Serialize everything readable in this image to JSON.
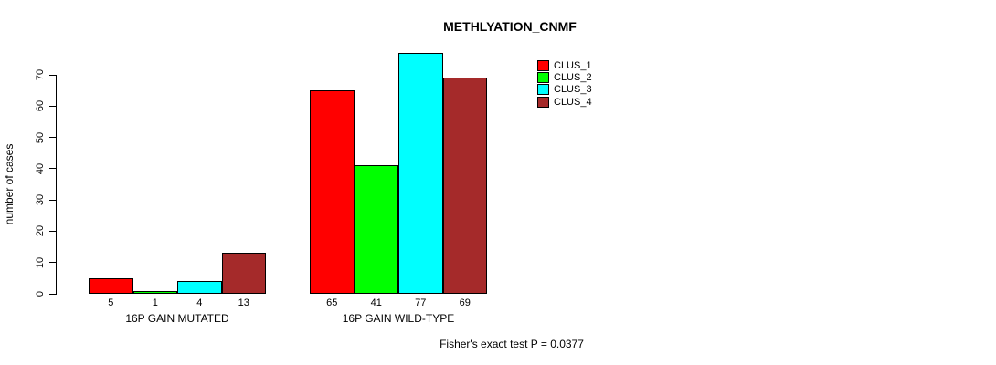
{
  "chart_data": {
    "type": "bar",
    "title": "METHLYATION_CNMF",
    "ylabel": "number of cases",
    "xlabel": "",
    "categories": [
      "16P GAIN MUTATED",
      "16P GAIN WILD-TYPE"
    ],
    "series": [
      {
        "name": "CLUS_1",
        "color": "#FF0000",
        "values": [
          5,
          65
        ]
      },
      {
        "name": "CLUS_2",
        "color": "#00FF00",
        "values": [
          1,
          41
        ]
      },
      {
        "name": "CLUS_3",
        "color": "#00FFFF",
        "values": [
          4,
          77
        ]
      },
      {
        "name": "CLUS_4",
        "color": "#A52A2A",
        "values": [
          13,
          69
        ]
      }
    ],
    "yticks": [
      0,
      10,
      20,
      30,
      40,
      50,
      60,
      70
    ],
    "ylim": [
      0,
      70
    ],
    "grid": false,
    "legend_position": "top-right",
    "bar_value_labels": true,
    "bar_border_color": "#000000",
    "annotation": "Fisher's exact test P = 0.0377"
  }
}
